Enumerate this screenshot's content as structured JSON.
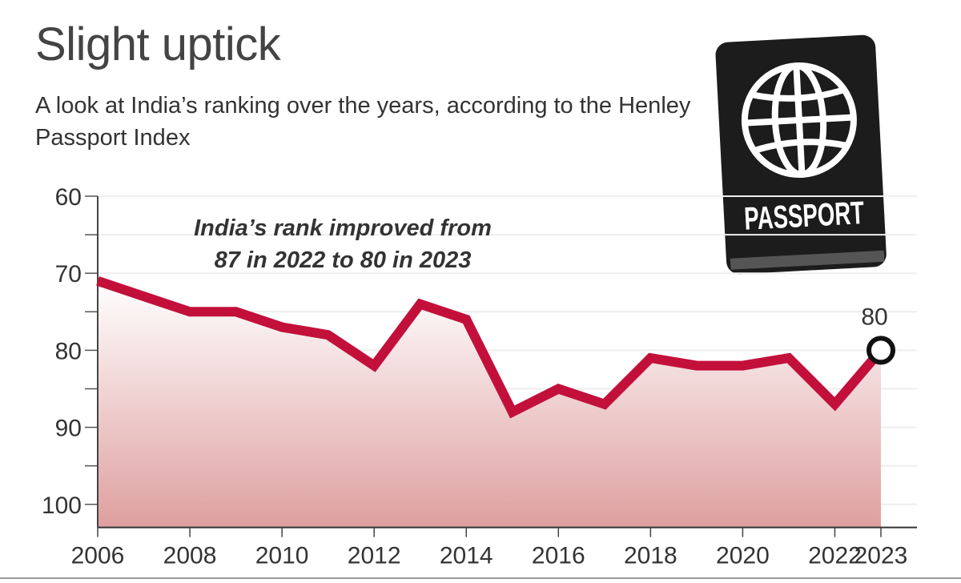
{
  "title": "Slight uptick",
  "subtitle": "A look at India’s ranking over the years, according to the Henley Passport Index",
  "passport_icon": {
    "label": "PASSPORT",
    "icon": "passport-globe-icon",
    "color": "#1c1c1c"
  },
  "chart_data": {
    "type": "area",
    "title": "Slight uptick",
    "xlabel": "",
    "ylabel": "",
    "x": [
      2006,
      2007,
      2008,
      2009,
      2010,
      2011,
      2012,
      2013,
      2014,
      2015,
      2016,
      2017,
      2018,
      2019,
      2020,
      2021,
      2022,
      2023
    ],
    "series": [
      {
        "values": [
          71,
          73,
          75,
          75,
          77,
          78,
          82,
          74,
          76,
          88,
          85,
          87,
          81,
          82,
          82,
          81,
          87,
          80
        ]
      }
    ],
    "y_inverted": true,
    "ylim": [
      60,
      103
    ],
    "xlim": [
      2006,
      2023
    ],
    "y_ticks": [
      "60",
      "70",
      "80",
      "90",
      "100"
    ],
    "x_ticks": [
      "2006",
      "2008",
      "2010",
      "2012",
      "2014",
      "2016",
      "2018",
      "2020",
      "2022",
      "2023"
    ],
    "grid": true,
    "annotation": [
      "India’s rank improved from",
      "87 in 2022 to 80 in 2023"
    ],
    "end_label": "80",
    "colors": {
      "line": "#c2103b",
      "fill": "#de9f9f",
      "marker": "#111111"
    }
  }
}
